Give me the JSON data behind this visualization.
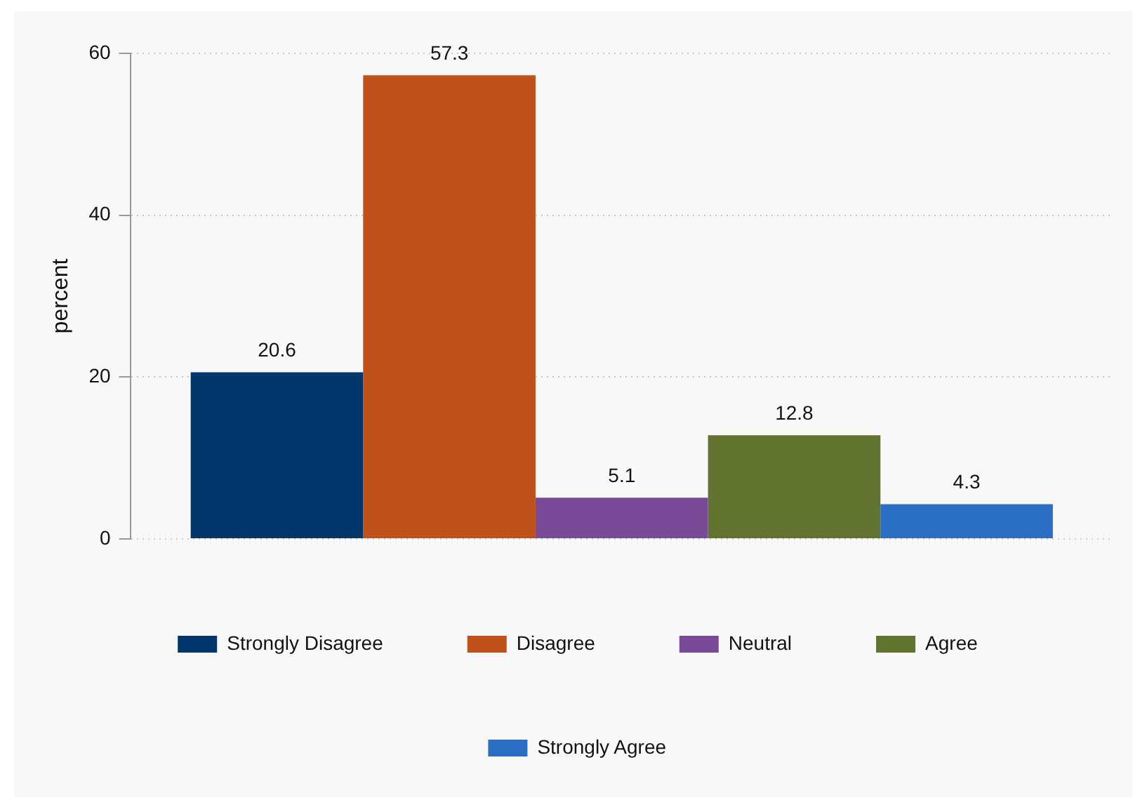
{
  "chart_data": {
    "type": "bar",
    "ylabel": "percent",
    "categories": [
      null
    ],
    "series": [
      {
        "name": "Strongly Disagree",
        "color": "#00366a",
        "values": [
          20.6
        ]
      },
      {
        "name": "Disagree",
        "color": "#bf521a",
        "values": [
          57.3
        ]
      },
      {
        "name": "Neutral",
        "color": "#7a4a99",
        "values": [
          5.1
        ]
      },
      {
        "name": "Agree",
        "color": "#62732f",
        "values": [
          12.8
        ]
      },
      {
        "name": "Strongly Agree",
        "color": "#2a6ec4",
        "values": [
          4.3
        ]
      }
    ],
    "ylim": [
      0,
      60
    ],
    "yticks": [
      0,
      20,
      40,
      60
    ],
    "grid": "y",
    "legend": "bottom",
    "data_labels": true
  }
}
